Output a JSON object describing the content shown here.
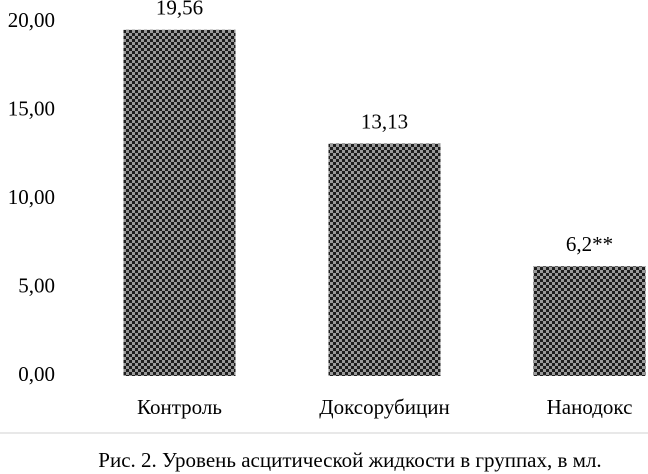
{
  "chart_data": {
    "type": "bar",
    "caption": "Рис. 2. Уровень асцитической жидкости в группах, в мл.",
    "categories": [
      "Контроль",
      "Доксорубицин",
      "Нанодокс"
    ],
    "values": [
      19.56,
      13.13,
      6.2
    ],
    "value_labels": [
      "19,56",
      "13,13",
      "6,2**"
    ],
    "color": "#1e1e1e",
    "ylim": [
      0,
      20
    ],
    "yticks": [
      {
        "value": 0,
        "label": "0,00"
      },
      {
        "value": 5,
        "label": "5,00"
      },
      {
        "value": 10,
        "label": "10,00"
      },
      {
        "value": 15,
        "label": "15,00"
      },
      {
        "value": 20,
        "label": "20,00"
      }
    ],
    "grid": false
  }
}
